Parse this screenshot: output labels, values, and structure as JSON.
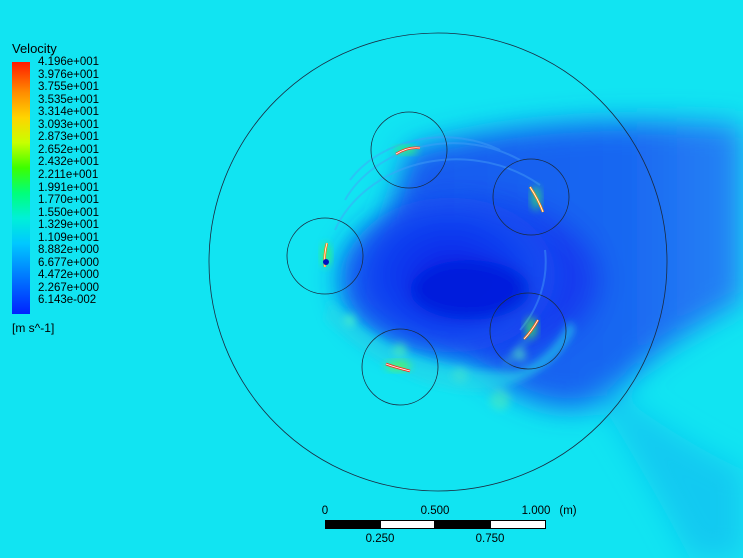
{
  "legend": {
    "title": "Velocity",
    "units": "[m s^-1]",
    "ticks": [
      "4.196e+001",
      "3.976e+001",
      "3.755e+001",
      "3.535e+001",
      "3.314e+001",
      "3.093e+001",
      "2.873e+001",
      "2.652e+001",
      "2.432e+001",
      "2.211e+001",
      "1.991e+001",
      "1.770e+001",
      "1.550e+001",
      "1.329e+001",
      "1.109e+001",
      "8.882e+000",
      "6.677e+000",
      "4.472e+000",
      "2.267e+000",
      "6.143e-002"
    ]
  },
  "scale_bar": {
    "top_labels": [
      "0",
      "0.500",
      "1.000"
    ],
    "unit": "(m)",
    "bottom_labels": [
      "0.250",
      "0.750"
    ]
  },
  "chart_data": {
    "type": "heatmap",
    "title": "Velocity",
    "units": "[m s^-1]",
    "range": [
      0.06143,
      41.96
    ],
    "colormap": "rainbow (blue = low, red = high)",
    "background_value_approx": 11.1,
    "wake_value_approx": 2.3,
    "blade_count": 5
  }
}
